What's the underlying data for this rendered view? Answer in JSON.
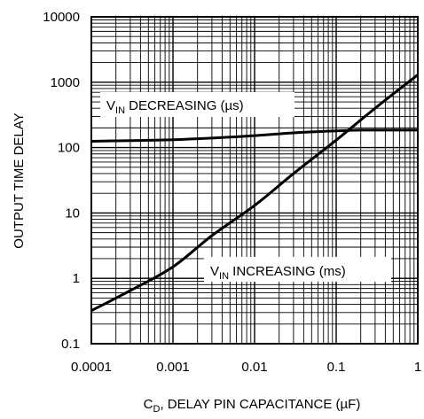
{
  "chart_data": {
    "type": "line",
    "title": "",
    "xlabel": {
      "main": "C",
      "sub": "D",
      "rest": ", DELAY PIN CAPACITANCE (µF)"
    },
    "ylabel": "OUTPUT TIME DELAY",
    "x_scale": "log",
    "y_scale": "log",
    "xlim": [
      0.0001,
      1
    ],
    "ylim": [
      0.1,
      10000
    ],
    "x_ticks": [
      "0.0001",
      "0.001",
      "0.01",
      "0.1",
      "1"
    ],
    "y_ticks": [
      "0.1",
      "1",
      "10",
      "100",
      "1000",
      "10000"
    ],
    "grid": true,
    "series": [
      {
        "name": {
          "main": "V",
          "sub": "IN",
          "rest": " DECREASING (µs)"
        },
        "x": [
          0.0001,
          0.0003,
          0.001,
          0.003,
          0.01,
          0.03,
          0.1,
          0.2,
          0.5,
          1
        ],
        "y": [
          125,
          128,
          132,
          140,
          152,
          168,
          180,
          185,
          185,
          185
        ]
      },
      {
        "name": {
          "main": "V",
          "sub": "IN",
          "rest": " INCREASING (ms)"
        },
        "x": [
          0.0001,
          0.0003,
          0.001,
          0.003,
          0.01,
          0.03,
          0.1,
          0.3,
          1
        ],
        "y": [
          0.32,
          0.65,
          1.5,
          4.5,
          13,
          40,
          130,
          400,
          1300
        ]
      }
    ]
  }
}
